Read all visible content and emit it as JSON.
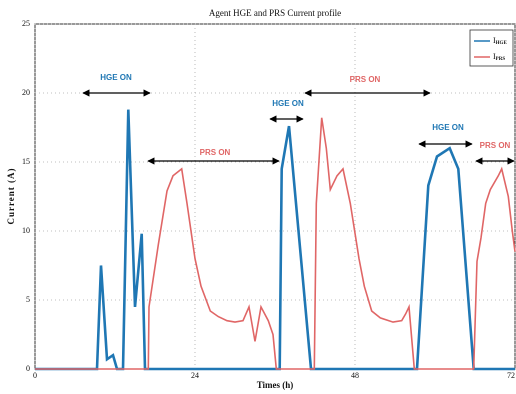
{
  "chart_data": {
    "type": "line",
    "title": "Agent HGE and PRS Current profile",
    "x_label": "Times (h)",
    "y_label": "Current (A)",
    "xlim": [
      0,
      72
    ],
    "xticks": [
      0,
      24,
      48,
      72
    ],
    "ylim": [
      0,
      25
    ],
    "yticks": [
      0,
      5,
      10,
      15,
      20,
      25
    ],
    "grid": true,
    "legend": "upper right",
    "annotations": [
      "HGE ON",
      "PRS ON",
      "HGE ON",
      "PRS ON",
      "HGE ON",
      "PRS ON"
    ],
    "series": [
      {
        "name": "IHGE",
        "color": "#1f77b4",
        "x": [
          0,
          9.3,
          9.9,
          10.8,
          11.7,
          12.3,
          13.2,
          14,
          15,
          16,
          16.5,
          36.7,
          37,
          38.1,
          41.4,
          57.3,
          59,
          60.3,
          62.2,
          63.5,
          65.8,
          72
        ],
        "values": [
          0,
          0,
          7.5,
          0.7,
          1.0,
          0,
          0,
          18.8,
          4.5,
          9.8,
          0,
          0,
          14.5,
          17.6,
          0,
          0,
          13.3,
          15.4,
          16.0,
          14.5,
          0,
          0
        ]
      },
      {
        "name": "IPRS",
        "color": "#e06666",
        "x": [
          0,
          17,
          17.1,
          18.5,
          19.8,
          20.7,
          22,
          22.8,
          24,
          24.9,
          26.3,
          27.5,
          28.8,
          30,
          31.2,
          32.1,
          33,
          33.9,
          35,
          35.7,
          36.2,
          41.9,
          42.2,
          43,
          43.7,
          44.3,
          45.3,
          46.2,
          47.3,
          48.6,
          49.4,
          50.5,
          51.8,
          53.7,
          55,
          55.6,
          56.1,
          56.9,
          65.8,
          66.3,
          66.9,
          67.6,
          68.3,
          69.5,
          70,
          71,
          71.6,
          72
        ],
        "values": [
          0,
          0,
          4.5,
          9,
          12.9,
          14.0,
          14.5,
          12,
          8,
          6,
          4.2,
          3.8,
          3.5,
          3.4,
          3.5,
          4.5,
          2.0,
          4.5,
          3.5,
          2.5,
          0,
          0,
          12,
          18.2,
          16,
          13,
          14,
          14.5,
          12,
          8,
          6,
          4.2,
          3.7,
          3.4,
          3.5,
          4.0,
          4.5,
          0,
          0,
          7.8,
          9.5,
          12,
          13,
          14,
          14.5,
          12.5,
          10,
          8.5
        ]
      }
    ]
  }
}
